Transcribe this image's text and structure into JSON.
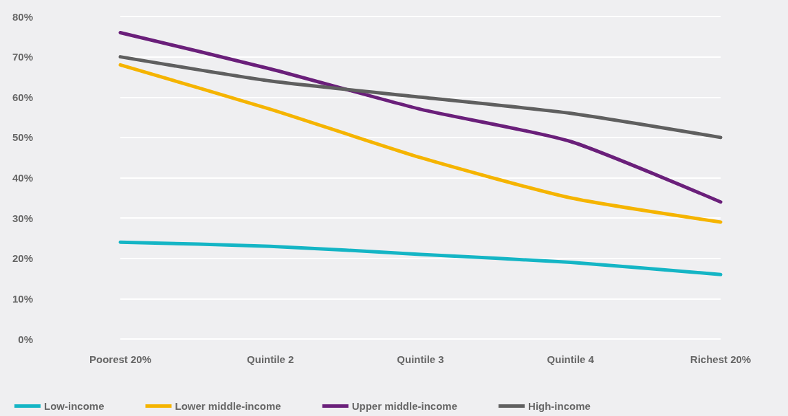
{
  "chart_data": {
    "type": "line",
    "categories": [
      "Poorest 20%",
      "Quintile 2",
      "Quintile 3",
      "Quintile 4",
      "Richest 20%"
    ],
    "series": [
      {
        "name": "Low-income",
        "color": "#14b5c5",
        "values": [
          24,
          23,
          21,
          19,
          16
        ]
      },
      {
        "name": "Lower middle-income",
        "color": "#f5b400",
        "values": [
          68,
          57,
          45,
          35,
          29
        ]
      },
      {
        "name": "Upper middle-income",
        "color": "#6a1f7a",
        "values": [
          76,
          67,
          57,
          49,
          34
        ]
      },
      {
        "name": "High-income",
        "color": "#5f5f5f",
        "values": [
          70,
          64,
          60,
          56,
          50
        ]
      }
    ],
    "ylim": [
      0,
      80
    ],
    "yticks": [
      {
        "value": 0,
        "label": "0%"
      },
      {
        "value": 10,
        "label": "10%"
      },
      {
        "value": 20,
        "label": "20%"
      },
      {
        "value": 30,
        "label": "30%"
      },
      {
        "value": 40,
        "label": "40%"
      },
      {
        "value": 50,
        "label": "50%"
      },
      {
        "value": 60,
        "label": "60%"
      },
      {
        "value": 70,
        "label": "70%"
      },
      {
        "value": 80,
        "label": "80%"
      }
    ],
    "grid": "y",
    "legend": "bottom left",
    "marker": "none",
    "line_style": "solid"
  }
}
